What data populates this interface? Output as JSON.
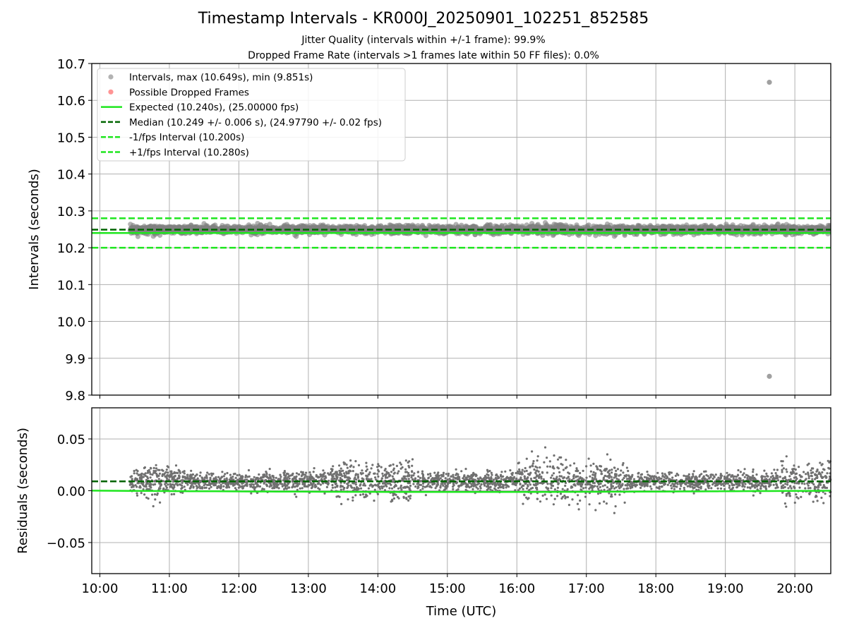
{
  "header": {
    "title": "Timestamp Intervals - KR000J_20250901_102251_852585",
    "subtitle1": "Jitter Quality (intervals within +/-1 frame): 99.9%",
    "subtitle2": "Dropped Frame Rate (intervals >1 frames late within 50 FF files): 0.0%"
  },
  "colors": {
    "points": "#808080",
    "dropped": "#ff4d4d",
    "expected": "#1ee61e",
    "median": "#006400",
    "bound": "#1ee61e",
    "grid": "#b0b0b0"
  },
  "chart_data": [
    {
      "type": "scatter",
      "ylabel": "Intervals (seconds)",
      "xlabel": "",
      "xlim": [
        "09:53",
        "20:31"
      ],
      "ylim": [
        9.8,
        10.7
      ],
      "yticks": [
        9.8,
        9.9,
        10.0,
        10.1,
        10.2,
        10.3,
        10.4,
        10.5,
        10.6,
        10.7
      ],
      "ytick_labels": [
        "9.8",
        "9.9",
        "10.0",
        "10.1",
        "10.2",
        "10.3",
        "10.4",
        "10.5",
        "10.6",
        "10.7"
      ],
      "grid": true,
      "legend_position": "upper-left",
      "legend": [
        {
          "label": "Intervals, max (10.649s), min (9.851s)",
          "kind": "marker",
          "color": "#808080"
        },
        {
          "label": "Possible Dropped Frames",
          "kind": "marker",
          "color": "#ff4d4d"
        },
        {
          "label": "Expected (10.240s), (25.00000 fps)",
          "kind": "solid",
          "color": "#1ee61e"
        },
        {
          "label": "Median (10.249 +/- 0.006 s), (24.97790 +/- 0.02 fps)",
          "kind": "dashed",
          "color": "#006400"
        },
        {
          "label": "-1/fps Interval (10.200s)",
          "kind": "dashed",
          "color": "#1ee61e"
        },
        {
          "label": "+1/fps Interval (10.280s)",
          "kind": "dashed",
          "color": "#1ee61e"
        }
      ],
      "reference_lines": {
        "expected": 10.24,
        "median": 10.249,
        "lower": 10.2,
        "upper": 10.28
      },
      "series": [
        {
          "kind": "intervals",
          "time_range": [
            "10:26",
            "20:31"
          ],
          "typical_value": 10.249,
          "typical_spread": 0.006,
          "outliers": [
            {
              "x": "19:38",
              "y": 10.649
            },
            {
              "x": "19:38",
              "y": 9.851
            }
          ]
        }
      ]
    },
    {
      "type": "scatter",
      "ylabel": "Residuals (seconds)",
      "xlabel": "Time (UTC)",
      "xlim": [
        "09:53",
        "20:31"
      ],
      "ylim": [
        -0.08,
        0.08
      ],
      "yticks": [
        -0.05,
        0.0,
        0.05
      ],
      "ytick_labels": [
        "−0.05",
        "0.00",
        "0.05"
      ],
      "xticks": [
        "10:00",
        "11:00",
        "12:00",
        "13:00",
        "14:00",
        "15:00",
        "16:00",
        "17:00",
        "18:00",
        "19:00",
        "20:00"
      ],
      "grid": true,
      "reference_lines": {
        "zero": 0.0,
        "median_offset": 0.009
      },
      "series": [
        {
          "kind": "residuals",
          "time_range": [
            "10:26",
            "20:31"
          ],
          "typical_value": 0.009,
          "typical_spread": 0.008
        }
      ]
    }
  ]
}
